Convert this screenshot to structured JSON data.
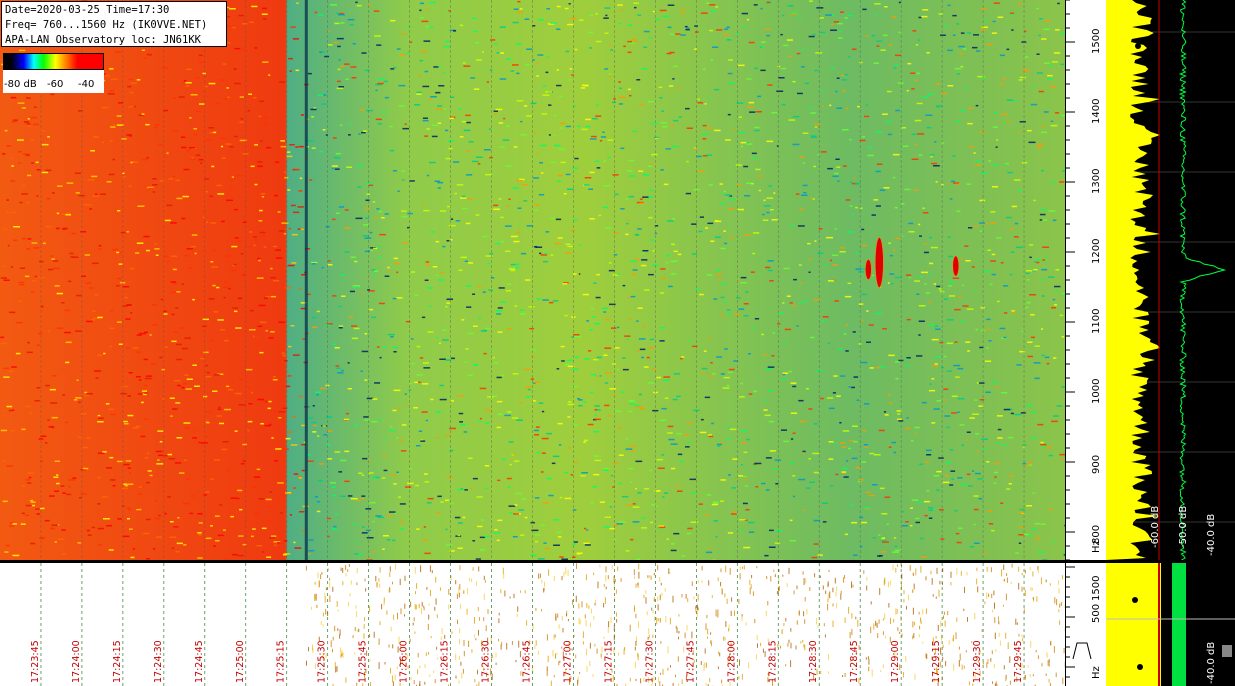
{
  "header": {
    "line1": "Date=2020-03-25 Time=17:30",
    "line2": "Freq= 760...1560 Hz (IK0VVE.NET)",
    "line3": "APA-LAN Observatory loc: JN61KK"
  },
  "colorbar": {
    "labels": [
      "-80 dB",
      "-60",
      "-40"
    ],
    "colors": [
      "#000000",
      "#0000ff",
      "#00ffff",
      "#00ff00",
      "#ffff00",
      "#ff8000",
      "#ff0000"
    ]
  },
  "chart_data": [
    {
      "type": "heatmap",
      "title": "",
      "xlabel": "",
      "ylabel": "Hz",
      "x_ticks": [
        "17:23:45",
        "17:24:00",
        "17:24:15",
        "17:24:30",
        "17:24:45",
        "17:25:00",
        "17:25:15",
        "17:25:30",
        "17:25:45",
        "17:26:00",
        "17:26:15",
        "17:26:30",
        "17:26:45",
        "17:27:00",
        "17:27:15",
        "17:27:30",
        "17:27:45",
        "17:28:00",
        "17:28:15",
        "17:28:30",
        "17:28:45",
        "17:29:00",
        "17:29:15",
        "17:29:30",
        "17:29:45"
      ],
      "y_ticks": [
        800,
        900,
        1000,
        1100,
        1200,
        1300,
        1400,
        1500
      ],
      "ylim": [
        760,
        1560
      ],
      "xlim": [
        "17:23:30",
        "17:30:00"
      ],
      "colorscale_db": [
        -80,
        -40
      ],
      "regions": [
        {
          "from": "17:23:30",
          "to": "17:25:22",
          "level": "high (red/orange)"
        },
        {
          "from": "17:25:22",
          "to": "17:30:00",
          "level": "moderate (green/yellow)"
        }
      ],
      "events": [
        {
          "time": "17:28:48",
          "freq": 1175
        },
        {
          "time": "17:28:52",
          "freq": 1185
        },
        {
          "time": "17:29:20",
          "freq": 1180
        }
      ]
    },
    {
      "type": "line",
      "title": "",
      "labels": [
        "-60.0 dB",
        "-50.0 dB",
        "-40.0 dB"
      ],
      "peak_freq": 1175
    },
    {
      "type": "heatmap",
      "title": "",
      "ylabel": "Hz",
      "y_ticks": [
        500,
        1500
      ],
      "spectrum_label": "-40.0 dB"
    }
  ]
}
